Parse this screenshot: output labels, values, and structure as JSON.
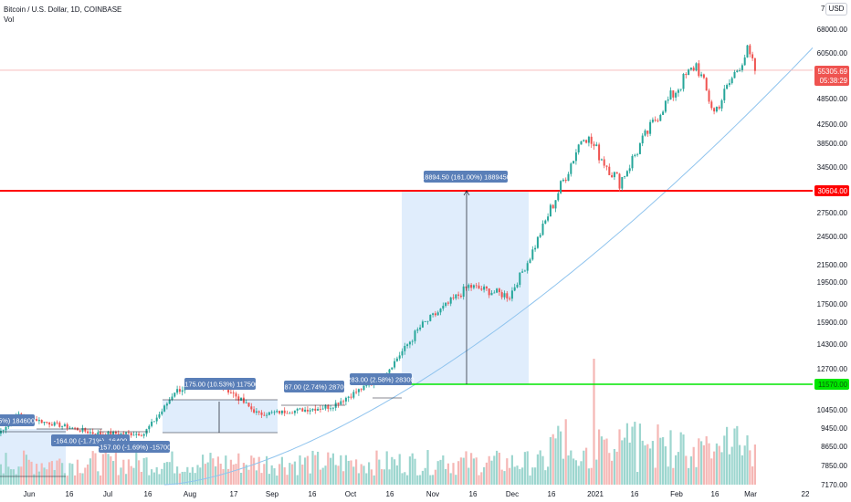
{
  "header": {
    "symbol_line": "Bitcoin / U.S. Dollar, 1D, COINBASE",
    "volume_label": "Vol",
    "currency_button": "USD"
  },
  "price_axis": {
    "top_label": "7",
    "labels": [
      "68000.00",
      "60500.00",
      "54000.00",
      "48500.00",
      "42500.00",
      "38500.00",
      "34500.00",
      "30604.00",
      "27500.00",
      "24500.00",
      "21500.00",
      "19500.00",
      "17500.00",
      "15900.00",
      "14300.00",
      "12700.00",
      "11500.00",
      "10450.00",
      "9450.00",
      "8650.00",
      "7850.00",
      "7170.00"
    ]
  },
  "time_axis": {
    "labels": [
      "Jun",
      "16",
      "Jul",
      "16",
      "Aug",
      "17",
      "Sep",
      "16",
      "Oct",
      "16",
      "Nov",
      "16",
      "Dec",
      "16",
      "2021",
      "16",
      "Feb",
      "16",
      "Mar",
      "22"
    ]
  },
  "price_tags": {
    "current_price": "55305.69",
    "countdown": "05:38:29",
    "resistance_level": "30604.00",
    "support_level": "11570.00"
  },
  "measurements": [
    {
      "text": "5%) 184600"
    },
    {
      "text": "-164.00 (-1.71%) -16400"
    },
    {
      "text": "-157.00 (-1.69%) -15700"
    },
    {
      "text": "1175.00 (10.53%) 117500"
    },
    {
      "text": "287.00 (2.74%) 28700"
    },
    {
      "text": "283.00 (2.58%) 28300"
    },
    {
      "text": "18894.50 (161.00%) 1889450"
    }
  ],
  "colors": {
    "bull": "#26a69a",
    "bear": "#ef5350",
    "resistance": "#ff0000",
    "support": "#00e600",
    "curve": "#90c4ee",
    "measure_fill": "#dbeafb",
    "measure_label": "#5a7fb8",
    "price_tag": "#ef5350"
  },
  "chart_data": {
    "type": "candlestick",
    "symbol": "BTCUSD",
    "interval": "1D",
    "exchange": "COINBASE",
    "y_scale": "log",
    "ylim": [
      7170,
      72000
    ],
    "x_range": [
      "2020-05-24",
      "2021-03-24"
    ],
    "horizontal_lines": [
      {
        "value": 30604,
        "color": "red"
      },
      {
        "value": 11570,
        "color": "green"
      }
    ],
    "last_price": 55305.69,
    "key_points": [
      {
        "date": "2020-05-24",
        "close": 9200
      },
      {
        "date": "2020-06-01",
        "close": 10200
      },
      {
        "date": "2020-06-10",
        "close": 9800
      },
      {
        "date": "2020-07-01",
        "close": 9200
      },
      {
        "date": "2020-07-20",
        "close": 9200
      },
      {
        "date": "2020-08-01",
        "close": 11300
      },
      {
        "date": "2020-08-17",
        "close": 11900
      },
      {
        "date": "2020-09-03",
        "close": 10200
      },
      {
        "date": "2020-10-01",
        "close": 10600
      },
      {
        "date": "2020-10-20",
        "close": 11900
      },
      {
        "date": "2020-11-05",
        "close": 15500
      },
      {
        "date": "2020-11-24",
        "close": 19100
      },
      {
        "date": "2020-12-10",
        "close": 18200
      },
      {
        "date": "2020-12-20",
        "close": 23500
      },
      {
        "date": "2021-01-08",
        "close": 40500
      },
      {
        "date": "2021-01-22",
        "close": 32000
      },
      {
        "date": "2021-02-08",
        "close": 46500
      },
      {
        "date": "2021-02-21",
        "close": 57000
      },
      {
        "date": "2021-02-28",
        "close": 45200
      },
      {
        "date": "2021-03-13",
        "close": 61000
      },
      {
        "date": "2021-03-16",
        "close": 55305
      }
    ]
  }
}
